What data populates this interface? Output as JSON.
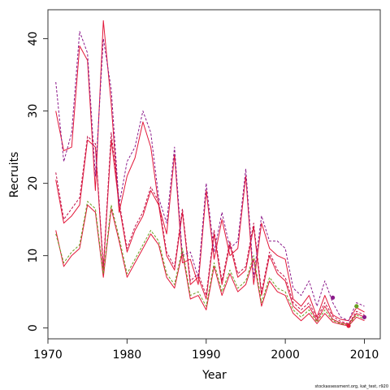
{
  "chart_data": {
    "type": "line",
    "xlabel": "Year",
    "ylabel": "Recruits",
    "xlim": [
      1970,
      2012
    ],
    "ylim": [
      -1.5,
      44
    ],
    "x_ticks": [
      1970,
      1980,
      1990,
      2000,
      2010
    ],
    "y_ticks": [
      0,
      10,
      20,
      30,
      40
    ],
    "footnote": "stockassessment.org, kat_test, r920",
    "x": [
      1971,
      1972,
      1973,
      1974,
      1975,
      1976,
      1977,
      1978,
      1979,
      1980,
      1981,
      1982,
      1983,
      1984,
      1985,
      1986,
      1987,
      1988,
      1989,
      1990,
      1991,
      1992,
      1993,
      1994,
      1995,
      1996,
      1997,
      1998,
      1999,
      2000,
      2001,
      2002,
      2003,
      2004,
      2005,
      2006,
      2007,
      2008,
      2009,
      2010
    ],
    "series": [
      {
        "color": "#e2183a",
        "style": "solid",
        "values": [
          20.5,
          14.5,
          15.5,
          17.0,
          26.0,
          25.0,
          8.0,
          26.0,
          17.0,
          10.5,
          13.5,
          15.5,
          19.0,
          17.0,
          10.0,
          8.0,
          16.0,
          6.0,
          7.0,
          4.0,
          13.0,
          6.0,
          11.5,
          7.0,
          8.0,
          14.0,
          4.5,
          10.0,
          7.5,
          6.5,
          3.0,
          2.0,
          3.0,
          1.0,
          3.0,
          1.2,
          0.7,
          0.5,
          2.0,
          1.5
        ]
      },
      {
        "color": "#e2183a",
        "style": "solid",
        "values": [
          13.5,
          8.5,
          10.0,
          11.0,
          17.0,
          16.0,
          7.0,
          16.5,
          12.0,
          7.0,
          9.0,
          11.0,
          13.0,
          11.5,
          7.0,
          5.5,
          10.5,
          4.0,
          4.5,
          2.5,
          8.5,
          4.5,
          7.5,
          5.0,
          6.0,
          9.5,
          3.0,
          6.5,
          5.0,
          4.5,
          2.0,
          1.0,
          2.0,
          0.6,
          2.0,
          0.8,
          0.5,
          0.3,
          1.5,
          1.0
        ]
      },
      {
        "color": "#e2183a",
        "style": "solid",
        "values": [
          30.0,
          24.5,
          25.0,
          39.0,
          37.0,
          19.0,
          42.5,
          31.0,
          16.0,
          21.0,
          23.5,
          28.5,
          25.0,
          17.0,
          13.0,
          24.0,
          9.0,
          9.5,
          6.0,
          19.0,
          9.5,
          15.0,
          10.0,
          11.0,
          21.0,
          6.0,
          14.5,
          11.0,
          10.0,
          9.5,
          4.0,
          3.0,
          4.5,
          1.5,
          4.5,
          1.8,
          1.2,
          1.0,
          2.8,
          2.2
        ]
      },
      {
        "color": "#8b1a8b",
        "style": "dashed",
        "values": [
          34.0,
          23.0,
          27.0,
          41.0,
          38.0,
          21.0,
          40.0,
          33.0,
          17.0,
          23.0,
          25.0,
          30.0,
          27.0,
          18.0,
          14.5,
          25.0,
          10.0,
          10.5,
          7.0,
          20.0,
          10.5,
          16.0,
          11.0,
          12.0,
          22.0,
          7.0,
          15.5,
          12.0,
          12.0,
          11.0,
          5.5,
          4.5,
          6.5,
          3.0,
          6.5,
          3.5,
          1.5,
          1.0,
          3.5,
          3.0
        ]
      },
      {
        "color": "#c0134a",
        "style": "dashed",
        "values": [
          21.5,
          15.0,
          16.5,
          18.0,
          26.5,
          25.5,
          8.5,
          27.0,
          17.5,
          11.0,
          14.0,
          16.0,
          19.5,
          17.5,
          10.5,
          8.5,
          16.5,
          6.5,
          7.5,
          4.5,
          13.5,
          6.5,
          12.0,
          7.5,
          8.5,
          14.5,
          5.0,
          10.5,
          8.0,
          7.0,
          3.5,
          2.5,
          3.5,
          1.3,
          3.5,
          1.6,
          0.9,
          0.6,
          2.3,
          1.8
        ]
      },
      {
        "color": "#6aa121",
        "style": "dashed",
        "values": [
          13.0,
          9.0,
          10.5,
          11.5,
          17.5,
          16.5,
          7.5,
          17.0,
          12.5,
          7.5,
          9.5,
          11.5,
          13.5,
          12.0,
          7.5,
          6.0,
          11.0,
          4.5,
          5.0,
          3.0,
          9.0,
          5.0,
          8.0,
          5.5,
          6.5,
          10.0,
          3.5,
          7.0,
          5.5,
          5.0,
          2.5,
          1.5,
          2.5,
          0.8,
          2.5,
          1.0,
          0.6,
          0.4,
          1.8,
          1.2
        ]
      }
    ],
    "points": [
      {
        "x": 2006,
        "y": 4.2,
        "color": "#8b1a8b"
      },
      {
        "x": 2008,
        "y": 0.3,
        "color": "#e2183a"
      },
      {
        "x": 2009,
        "y": 3.0,
        "color": "#6aa121"
      },
      {
        "x": 2010,
        "y": 1.5,
        "color": "#8b1a8b"
      }
    ]
  }
}
